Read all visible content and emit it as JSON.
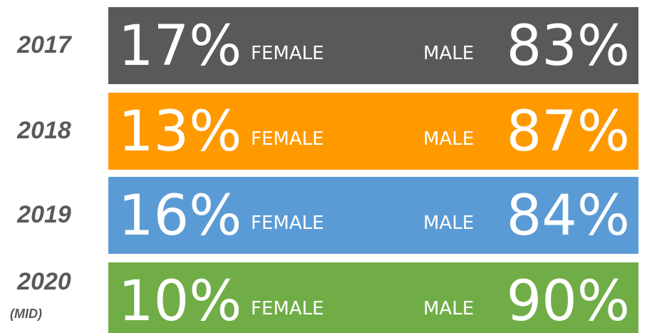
{
  "labels": {
    "female": "FEMALE",
    "male": "MALE"
  },
  "rows": [
    {
      "year": "2017",
      "female": "17%",
      "male": "83%",
      "color": "#595959"
    },
    {
      "year": "2018",
      "female": "13%",
      "male": "87%",
      "color": "#ff9900"
    },
    {
      "year": "2019",
      "female": "16%",
      "male": "84%",
      "color": "#5b9bd5"
    },
    {
      "year": "2020",
      "note": "(MID)",
      "female": "10%",
      "male": "90%",
      "color": "#70ad47"
    }
  ]
}
